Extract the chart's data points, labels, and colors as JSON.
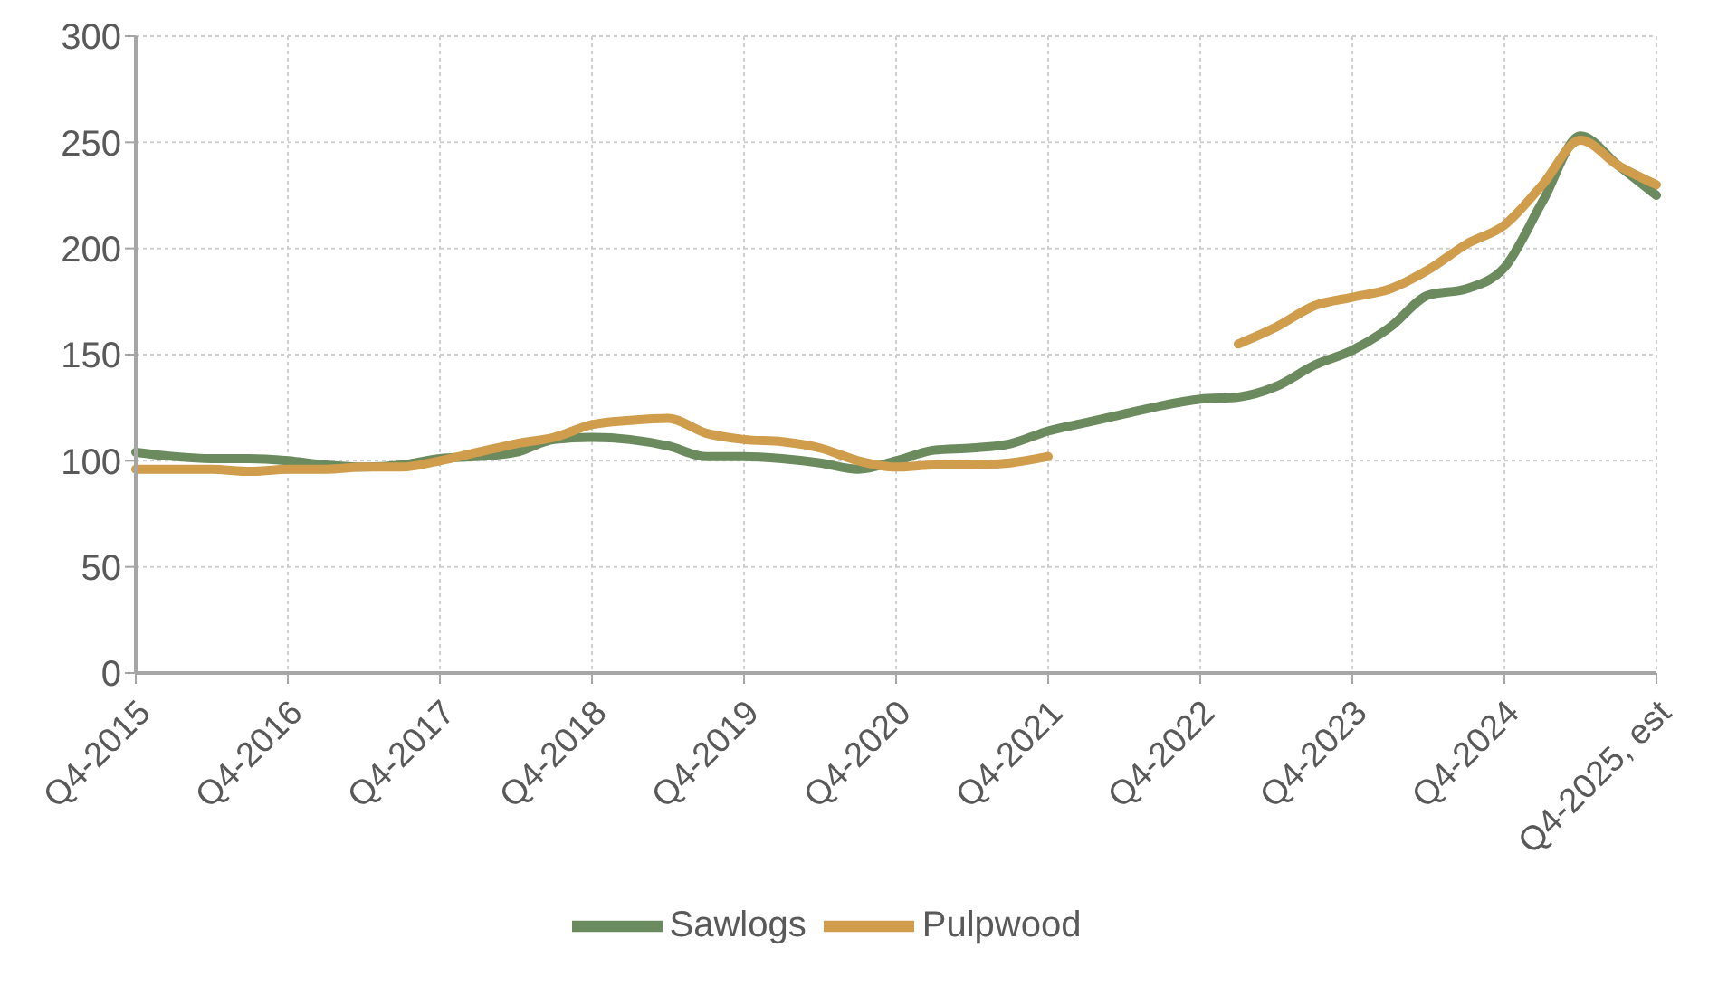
{
  "chart_data": {
    "type": "line",
    "categories": [
      "Q4-2015",
      null,
      null,
      null,
      "Q4-2016",
      null,
      null,
      null,
      "Q4-2017",
      null,
      null,
      null,
      "Q4-2018",
      null,
      null,
      null,
      "Q4-2019",
      null,
      null,
      null,
      "Q4-2020",
      null,
      null,
      null,
      "Q4-2021",
      null,
      null,
      null,
      "Q4-2022",
      null,
      null,
      null,
      "Q4-2023",
      null,
      null,
      null,
      "Q4-2024",
      null,
      null,
      null,
      "Q4-2025, est"
    ],
    "series": [
      {
        "name": "Sawlogs",
        "color": "#6b8a5e",
        "values": [
          104,
          102,
          101,
          101,
          100,
          98,
          97,
          98,
          101,
          102,
          104,
          110,
          111,
          110,
          107,
          102,
          102,
          101,
          99,
          96,
          100,
          105,
          106,
          108,
          114,
          118,
          122,
          126,
          129,
          130,
          135,
          145,
          152,
          163,
          178,
          181,
          191,
          222,
          253,
          239,
          225
        ]
      },
      {
        "name": "Pulpwood",
        "color": "#cf9d4b",
        "values": [
          96,
          96,
          96,
          95,
          96,
          96,
          97,
          97,
          100,
          104,
          108,
          111,
          117,
          119,
          120,
          113,
          110,
          109,
          106,
          100,
          97,
          98,
          98,
          99,
          102,
          null,
          null,
          null,
          null,
          155,
          163,
          173,
          177,
          181,
          190,
          202,
          211,
          230,
          251,
          239,
          230
        ]
      }
    ],
    "ylim": [
      0,
      300
    ],
    "yticks": [
      0,
      50,
      100,
      150,
      200,
      250,
      300
    ],
    "grid": true,
    "legend": "bottom",
    "marker": "none",
    "line_style": "solid"
  }
}
